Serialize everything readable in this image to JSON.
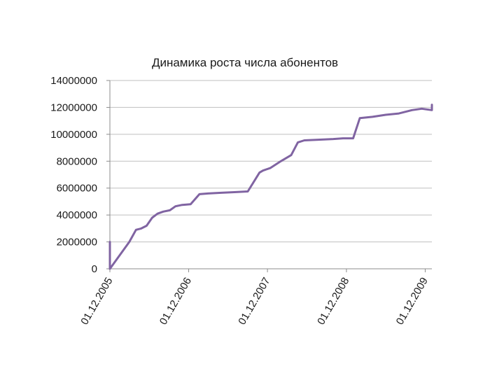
{
  "chart_data": {
    "type": "line",
    "title": "Динамика роста числа абонентов",
    "xlabel": "",
    "ylabel": "",
    "ylim": [
      0,
      14000000
    ],
    "yticks": [
      0,
      2000000,
      4000000,
      6000000,
      8000000,
      10000000,
      12000000,
      14000000
    ],
    "ytick_labels": [
      "0",
      "2000000",
      "4000000",
      "6000000",
      "8000000",
      "10000000",
      "12000000",
      "14000000"
    ],
    "xlim": [
      "2005-12-01",
      "2010-01-01"
    ],
    "xticks": [
      "2005-12-01",
      "2006-12-01",
      "2007-12-01",
      "2008-12-01",
      "2009-12-01"
    ],
    "xtick_labels": [
      "01.12.2005",
      "01.12.2006",
      "01.12.2007",
      "01.12.2008",
      "01.12.2009"
    ],
    "grid": "horizontal",
    "legend": "none",
    "color": "#8064a2",
    "series": [
      {
        "x": [
          "2005-12-01",
          "2005-12-01",
          "2006-01-15",
          "2006-03-01",
          "2006-04-01",
          "2006-04-25",
          "2006-05-20",
          "2006-06-15",
          "2006-07-10",
          "2006-08-05",
          "2006-09-05",
          "2006-10-01",
          "2006-11-01",
          "2006-12-10",
          "2007-01-20",
          "2007-03-01",
          "2007-05-01",
          "2007-07-01",
          "2007-09-01",
          "2007-10-25",
          "2007-11-10",
          "2007-12-15",
          "2008-02-01",
          "2008-03-20",
          "2008-04-20",
          "2008-05-20",
          "2008-08-01",
          "2008-10-01",
          "2008-11-15",
          "2009-01-01",
          "2009-02-01",
          "2009-04-01",
          "2009-06-01",
          "2009-08-01",
          "2009-10-01",
          "2009-11-15",
          "2010-01-01",
          "2010-01-01"
        ],
        "y": [
          2000000,
          0,
          1000000,
          2000000,
          2900000,
          3000000,
          3200000,
          3800000,
          4100000,
          4250000,
          4350000,
          4650000,
          4750000,
          4800000,
          5550000,
          5600000,
          5650000,
          5700000,
          5750000,
          7150000,
          7300000,
          7500000,
          8000000,
          8450000,
          9400000,
          9550000,
          9600000,
          9650000,
          9700000,
          9700000,
          11200000,
          11300000,
          11450000,
          11550000,
          11800000,
          11900000,
          11800000,
          12200000
        ]
      }
    ]
  }
}
